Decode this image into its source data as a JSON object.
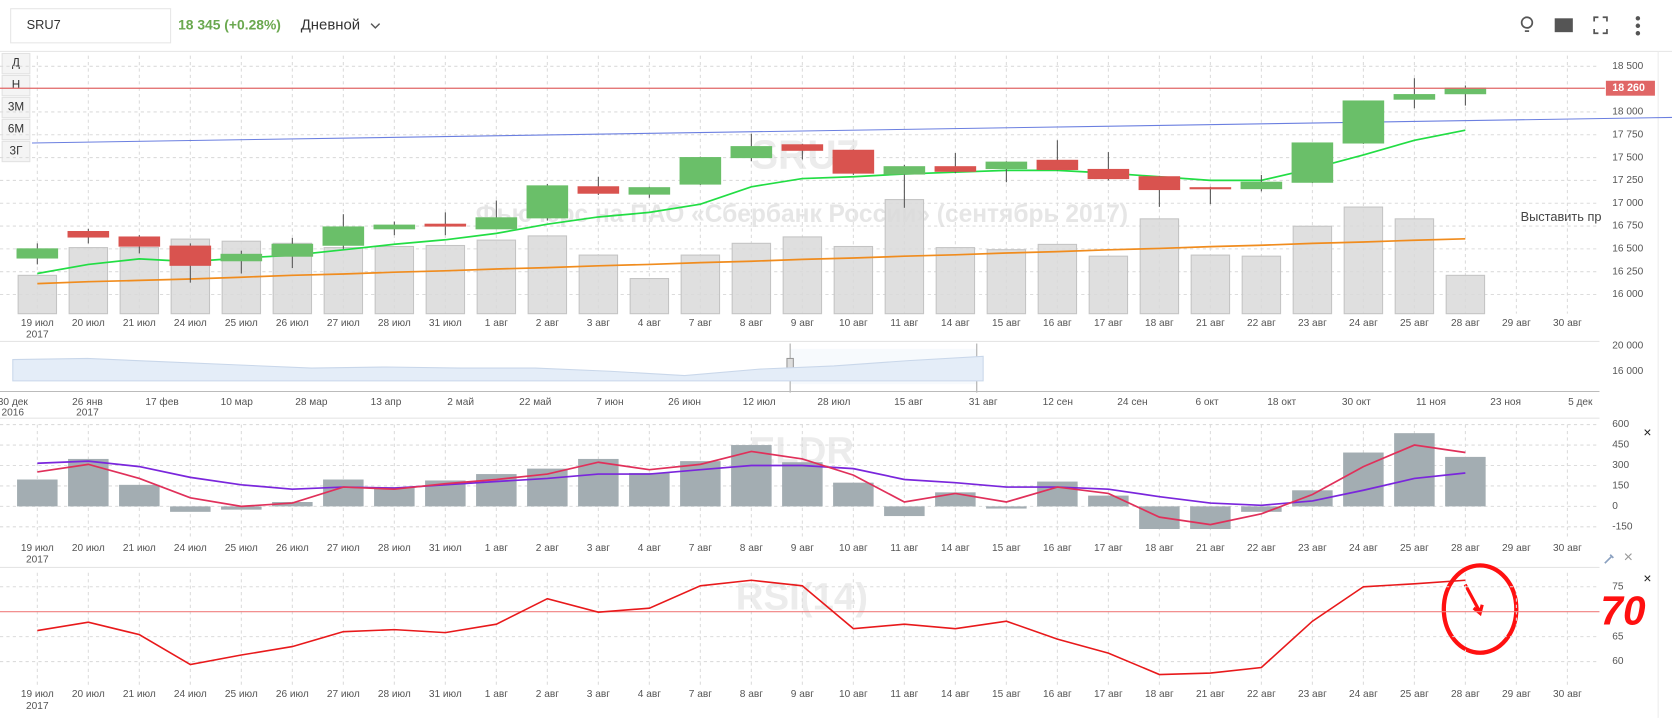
{
  "header": {
    "symbol": "SRU7",
    "price": "18 345 (+0.28%)",
    "interval": "Дневной",
    "periods": [
      "Д",
      "Н",
      "3М",
      "6М",
      "3Г"
    ],
    "order_button": "Выставить пр"
  },
  "chart_data": [
    {
      "type": "candlestick",
      "title": "SRU7",
      "subtitle": "Фьючерс на ПАО «Сбербанк России» (сентябрь 2017)",
      "categories": [
        "19 июл",
        "20 июл",
        "21 июл",
        "24 июл",
        "25 июл",
        "26 июл",
        "27 июл",
        "28 июл",
        "31 июл",
        "1 авг",
        "2 авг",
        "3 авг",
        "4 авг",
        "7 авг",
        "8 авг",
        "9 авг",
        "10 авг",
        "11 авг",
        "14 авг",
        "15 авг",
        "16 авг",
        "17 авг",
        "18 авг",
        "21 авг",
        "22 авг",
        "23 авг",
        "24 авг",
        "25 авг",
        "28 авг",
        "29 авг",
        "30 авг"
      ],
      "year_label": "2017",
      "open": [
        16400,
        16690,
        16630,
        16530,
        16370,
        16420,
        16540,
        16720,
        16770,
        16720,
        16840,
        17180,
        17100,
        17210,
        17500,
        17640,
        17580,
        17320,
        17400,
        17380,
        17470,
        17370,
        17290,
        17170,
        17160,
        17230,
        17660,
        18140,
        18200,
        null,
        null
      ],
      "high": [
        16560,
        16720,
        16650,
        16560,
        16480,
        16620,
        16880,
        16800,
        16900,
        17030,
        17210,
        17290,
        17180,
        17510,
        17760,
        17650,
        17590,
        17420,
        17550,
        17460,
        17690,
        17560,
        17300,
        17180,
        17310,
        17660,
        18120,
        18370,
        18290,
        null,
        null
      ],
      "low": [
        16330,
        16560,
        16450,
        16130,
        16230,
        16290,
        16500,
        16650,
        16650,
        16720,
        16810,
        17090,
        17060,
        17200,
        17460,
        17480,
        17310,
        16950,
        17330,
        17230,
        17360,
        17250,
        16960,
        16990,
        17130,
        17220,
        17650,
        18040,
        18070,
        null,
        null
      ],
      "close": [
        16500,
        16630,
        16530,
        16320,
        16440,
        16550,
        16740,
        16760,
        16750,
        16840,
        17190,
        17110,
        17170,
        17500,
        17620,
        17580,
        17330,
        17400,
        17350,
        17450,
        17370,
        17270,
        17150,
        17160,
        17230,
        17660,
        18120,
        18190,
        18260,
        null,
        null
      ],
      "up_color": "#6abf69",
      "down_color": "#d9534f",
      "volume": {
        "color": "#d9d9d9",
        "values": [
          16210,
          16514,
          16514,
          16607,
          16584,
          16561,
          16514,
          16526,
          16537,
          16596,
          16642,
          16432,
          16175,
          16432,
          16561,
          16631,
          16526,
          17040,
          16514,
          16491,
          16549,
          16420,
          16829,
          16432,
          16420,
          16748,
          16958,
          16829,
          16210,
          null,
          null
        ]
      },
      "lines": [
        {
          "color": "#22dd44",
          "values": [
            16230,
            16330,
            16390,
            16360,
            16400,
            16430,
            16490,
            16550,
            16600,
            16670,
            16770,
            16850,
            16900,
            16990,
            17180,
            17270,
            17290,
            17320,
            17340,
            17360,
            17360,
            17330,
            17290,
            17250,
            17250,
            17380,
            17530,
            17690,
            17800,
            null,
            null
          ]
        },
        {
          "color": "#f08c1e",
          "values": [
            16120,
            16140,
            16155,
            16170,
            16190,
            16210,
            16225,
            16245,
            16260,
            16280,
            16295,
            16315,
            16330,
            16350,
            16365,
            16385,
            16400,
            16420,
            16435,
            16455,
            16470,
            16490,
            16505,
            16525,
            16540,
            16560,
            16575,
            16595,
            16610,
            null,
            null
          ]
        }
      ],
      "trend": {
        "color": "#6b7fe0",
        "start": 17660,
        "end": 17940
      },
      "level": {
        "value": 18260,
        "label": "18 260",
        "color": "#e06666"
      },
      "ylim": [
        15790,
        18617
      ],
      "yticks": [
        {
          "value": 16000,
          "label": "16 000"
        },
        {
          "value": 16250,
          "label": "16 250"
        },
        {
          "value": 16500,
          "label": "16 500"
        },
        {
          "value": 16750,
          "label": "16 750"
        },
        {
          "value": 17000,
          "label": "17 000"
        },
        {
          "value": 17250,
          "label": "17 250"
        },
        {
          "value": 17500,
          "label": "17 500"
        },
        {
          "value": 17750,
          "label": "17 750"
        },
        {
          "value": 18000,
          "label": "18 000"
        },
        {
          "value": 18500,
          "label": "18 500"
        }
      ],
      "grid": true
    },
    {
      "type": "area",
      "color": "#e4edf8",
      "categories": [
        "30 дек",
        "26 янв",
        "17 фев",
        "10 мар",
        "28 мар",
        "13 апр",
        "2 май",
        "22 май",
        "7 июн",
        "26 июн",
        "12 июл",
        "28 июл",
        "15 авг",
        "31 авг",
        "12 сен",
        "24 сен",
        "6 окт",
        "18 окт",
        "30 окт",
        "11 ноя",
        "23 ноя",
        "5 дек"
      ],
      "category_years": [
        "2016",
        "2017",
        null,
        null,
        null,
        null,
        null,
        null,
        null,
        null,
        null,
        null,
        null,
        null,
        null,
        null,
        null,
        null,
        null,
        null,
        null,
        null
      ],
      "values": [
        17830,
        18000,
        17500,
        17000,
        16500,
        16670,
        16500,
        16500,
        16000,
        15330,
        16330,
        16830,
        17670,
        18330,
        null,
        null,
        null,
        null,
        null,
        null,
        null,
        null
      ],
      "ylim": [
        14500,
        21000
      ],
      "yticks": [
        {
          "value": 20000,
          "label": "20 000"
        },
        {
          "value": 16000,
          "label": "16 000"
        }
      ]
    },
    {
      "type": "bar",
      "title": "ELDR",
      "color": "#a3adb2",
      "values": [
        197,
        348,
        158,
        -40,
        -24,
        32,
        197,
        142,
        190,
        237,
        277,
        348,
        245,
        332,
        450,
        324,
        174,
        -71,
        103,
        -16,
        182,
        79,
        -166,
        -166,
        -40,
        118,
        395,
        537,
        363,
        null,
        null
      ],
      "lines": [
        {
          "color": "#7a26dc",
          "values": [
            316,
            332,
            292,
            213,
            158,
            126,
            142,
            134,
            158,
            182,
            205,
            237,
            237,
            269,
            300,
            300,
            277,
            197,
            174,
            142,
            142,
            126,
            71,
            24,
            8,
            40,
            118,
            205,
            245,
            null,
            null
          ]
        },
        {
          "color": "#e0305a",
          "values": [
            253,
            308,
            205,
            63,
            0,
            24,
            142,
            126,
            166,
            197,
            237,
            324,
            269,
            308,
            403,
            348,
            229,
            32,
            95,
            32,
            142,
            95,
            -79,
            -134,
            -55,
            87,
            292,
            450,
            395,
            null,
            null
          ]
        }
      ],
      "ylim": [
        -240,
        600
      ],
      "yticks": [
        600,
        450,
        300,
        150,
        0,
        -150
      ],
      "grid": true
    },
    {
      "type": "line",
      "title": "RSI(14)",
      "color": "#e8191b",
      "values": [
        66.2,
        67.9,
        65.4,
        59.4,
        61.3,
        63.0,
        66.0,
        66.4,
        65.8,
        67.5,
        72.6,
        69.9,
        70.7,
        75.2,
        76.3,
        75.2,
        66.6,
        67.5,
        66.6,
        68.1,
        64.5,
        61.7,
        57.4,
        57.7,
        58.8,
        68.1,
        75.0,
        75.6,
        76.3,
        null,
        null
      ],
      "level": 70,
      "level_color": "#f08080",
      "annotation": "70",
      "ylim": [
        54.7,
        77.8
      ],
      "yticks": [
        75,
        65,
        60
      ],
      "grid": true
    }
  ]
}
